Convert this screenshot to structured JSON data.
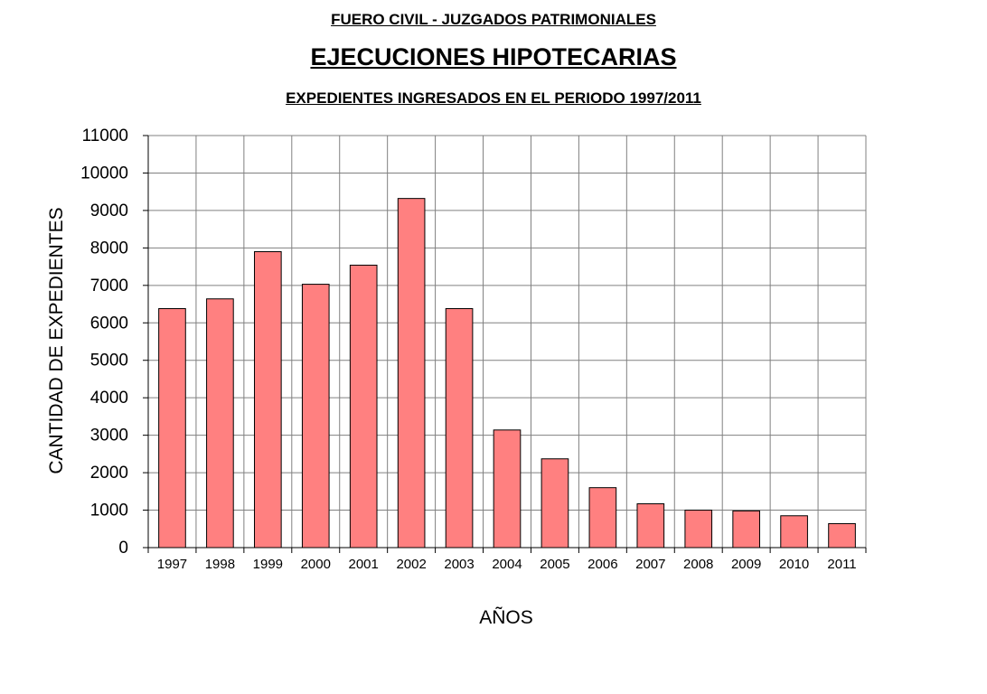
{
  "header": {
    "supertitle": "FUERO CIVIL - JUZGADOS PATRIMONIALES",
    "title": "EJECUCIONES HIPOTECARIAS",
    "subtitle": "EXPEDIENTES INGRESADOS EN EL PERIODO 1997/2011"
  },
  "chart_data": {
    "type": "bar",
    "categories": [
      "1997",
      "1998",
      "1999",
      "2000",
      "2001",
      "2002",
      "2003",
      "2004",
      "2005",
      "2006",
      "2007",
      "2008",
      "2009",
      "2010",
      "2011"
    ],
    "values": [
      6380,
      6640,
      7900,
      7030,
      7540,
      9320,
      6380,
      3140,
      2370,
      1600,
      1170,
      1000,
      980,
      850,
      640
    ],
    "title": "EJECUCIONES HIPOTECARIAS",
    "xlabel": "AÑOS",
    "ylabel": "CANTIDAD DE EXPEDIENTES",
    "ylim": [
      0,
      11000
    ],
    "yticks": [
      0,
      1000,
      2000,
      3000,
      4000,
      5000,
      6000,
      7000,
      8000,
      9000,
      10000,
      11000
    ],
    "grid": true,
    "bar_color": "#ff8080",
    "bar_edge_color": "#000000",
    "grid_color": "#808080"
  }
}
